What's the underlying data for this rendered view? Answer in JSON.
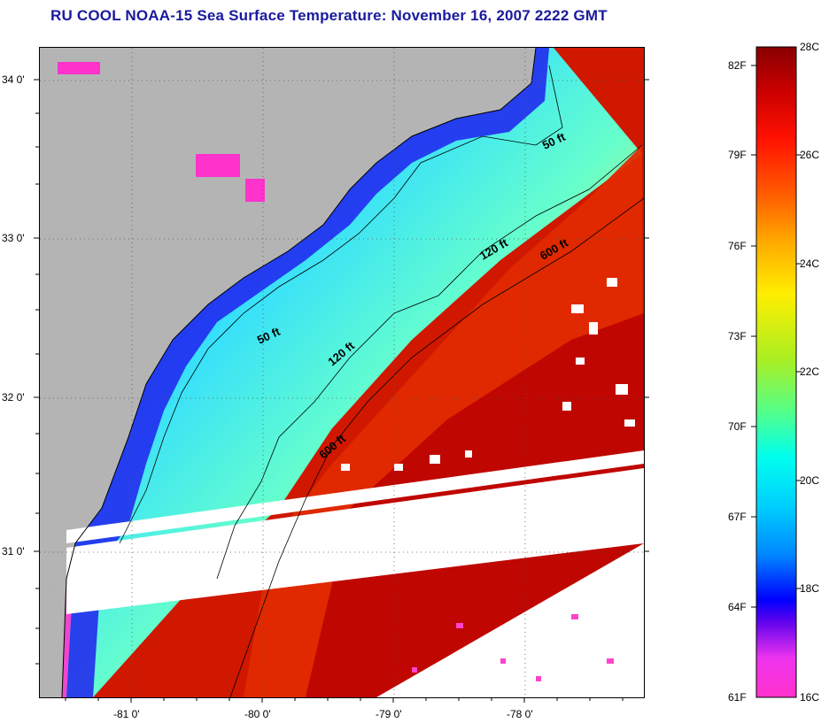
{
  "title": "RU COOL  NOAA-15  Sea Surface Temperature:  November 16, 2007 2222 GMT",
  "map": {
    "lat_labels": [
      "34 0'",
      "33 0'",
      "32 0'",
      "31 0'"
    ],
    "lon_labels": [
      "-81 0'",
      "-80 0'",
      "-79 0'",
      "-78 0'"
    ],
    "contours": [
      "50 ft",
      "50 ft",
      "120 ft",
      "120 ft",
      "600 ft",
      "600 ft"
    ],
    "colors": {
      "land": "#b4b4b4",
      "nodata": "#ffffff",
      "cold": "#ff33cc",
      "warm": "#b00000"
    }
  },
  "colorbar": {
    "fahrenheit": [
      "82F",
      "79F",
      "76F",
      "73F",
      "70F",
      "67F",
      "64F",
      "61F"
    ],
    "celsius": [
      "28C",
      "26C",
      "24C",
      "22C",
      "20C",
      "18C",
      "16C"
    ]
  }
}
